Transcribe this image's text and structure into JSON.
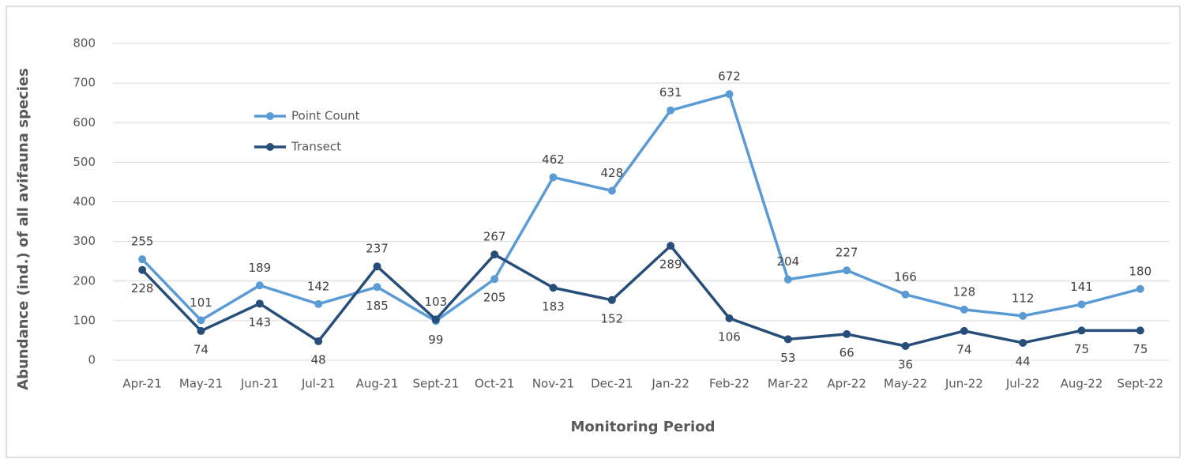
{
  "chart_data": {
    "type": "line",
    "x_label": "Monitoring Period",
    "y_label": "Abundance (ind.) of all avifauna species",
    "categories": [
      "Apr-21",
      "May-21",
      "Jun-21",
      "Jul-21",
      "Aug-21",
      "Sept-21",
      "Oct-21",
      "Nov-21",
      "Dec-21",
      "Jan-22",
      "Feb-22",
      "Mar-22",
      "Apr-22",
      "May-22",
      "Jun-22",
      "Jul-22",
      "Aug-22",
      "Sept-22"
    ],
    "series": [
      {
        "name": "Point Count",
        "color": "#5b9bd5",
        "values": [
          255,
          101,
          189,
          142,
          185,
          99,
          205,
          462,
          428,
          631,
          672,
          204,
          227,
          166,
          128,
          112,
          141,
          180
        ]
      },
      {
        "name": "Transect",
        "color": "#264e78",
        "values": [
          228,
          74,
          143,
          48,
          237,
          103,
          267,
          183,
          152,
          289,
          106,
          53,
          66,
          36,
          74,
          44,
          75,
          75
        ]
      }
    ],
    "ylim": [
      0,
      800
    ],
    "yticks": [
      0,
      100,
      200,
      300,
      400,
      500,
      600,
      700,
      800
    ],
    "grid": true,
    "legend_position": "upper left"
  }
}
